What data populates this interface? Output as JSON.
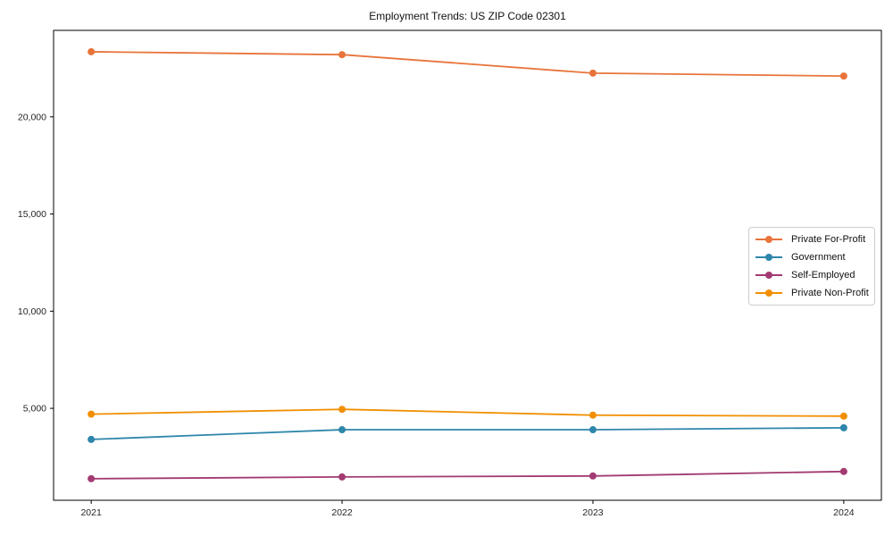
{
  "figure": {
    "background": "#ffffff",
    "axis_color": "#000000",
    "tick_label_color": "#262626"
  },
  "chart_data": {
    "type": "line",
    "title": "Employment Trends: US ZIP Code 02301",
    "xlabel": "",
    "ylabel": "",
    "categories": [
      "2021",
      "2022",
      "2023",
      "2024"
    ],
    "series": [
      {
        "name": "Private For-Profit",
        "color": "#E8743B",
        "values": [
          23350,
          23200,
          22250,
          22100
        ]
      },
      {
        "name": "Government",
        "color": "#2E86AB",
        "values": [
          3400,
          3900,
          3900,
          4000
        ]
      },
      {
        "name": "Self-Employed",
        "color": "#A23B72",
        "values": [
          1380,
          1470,
          1520,
          1750
        ]
      },
      {
        "name": "Private Non-Profit",
        "color": "#F18F01",
        "values": [
          4700,
          4950,
          4650,
          4600
        ]
      }
    ],
    "ylim": [
      270,
      24450
    ],
    "yticks": [
      {
        "value": 5000,
        "label": "5,000"
      },
      {
        "value": 10000,
        "label": "10,000"
      },
      {
        "value": 15000,
        "label": "15,000"
      },
      {
        "value": 20000,
        "label": "20,000"
      }
    ],
    "grid": false,
    "legend_position": "center-right",
    "marker": "circle",
    "line_width": 1.8,
    "marker_radius": 4
  }
}
